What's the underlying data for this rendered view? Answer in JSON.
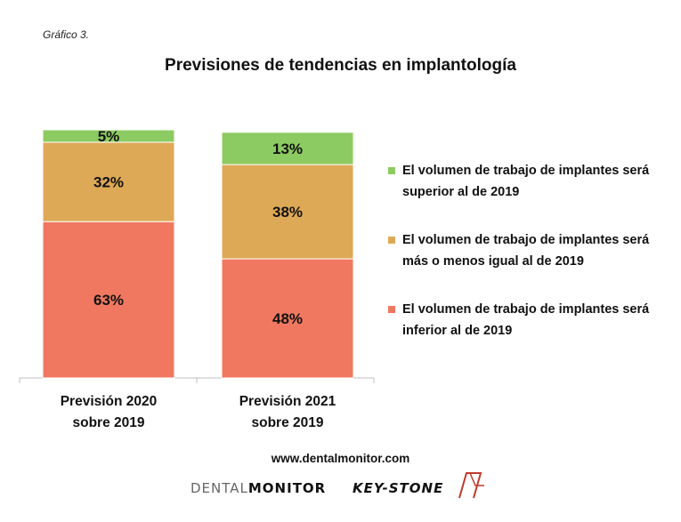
{
  "caption": "Gráfico 3.",
  "source": "www.dentalmonitor.com",
  "logos": {
    "dental_prefix": "DENTAL",
    "dental_suffix": "MONITOR",
    "keystone": "KEY-STONE"
  },
  "colors": {
    "inferior": "#f07860",
    "igual": "#dea956",
    "superior": "#8ccb62",
    "axis": "#bfbfbf"
  },
  "chart_data": {
    "type": "bar",
    "stacked": true,
    "percent": true,
    "title": "Previsiones de tendencias en implantología",
    "categories": [
      "Previsión 2020 sobre 2019",
      "Previsión 2021 sobre 2019"
    ],
    "series": [
      {
        "name": "El volumen de trabajo de implantes será inferior al de 2019",
        "key": "inferior",
        "values": [
          63,
          48
        ],
        "labels": [
          "63%",
          "48%"
        ]
      },
      {
        "name": "El volumen de trabajo de implantes será más o menos igual al de 2019",
        "key": "igual",
        "values": [
          32,
          38
        ],
        "labels": [
          "32%",
          "38%"
        ]
      },
      {
        "name": "El volumen de trabajo de implantes será superior al de 2019",
        "key": "superior",
        "values": [
          5,
          13
        ],
        "labels": [
          "5%",
          "13%"
        ]
      }
    ],
    "legend_order": [
      "superior",
      "igual",
      "inferior"
    ],
    "ylim": [
      0,
      100
    ],
    "legend_position": "right"
  }
}
